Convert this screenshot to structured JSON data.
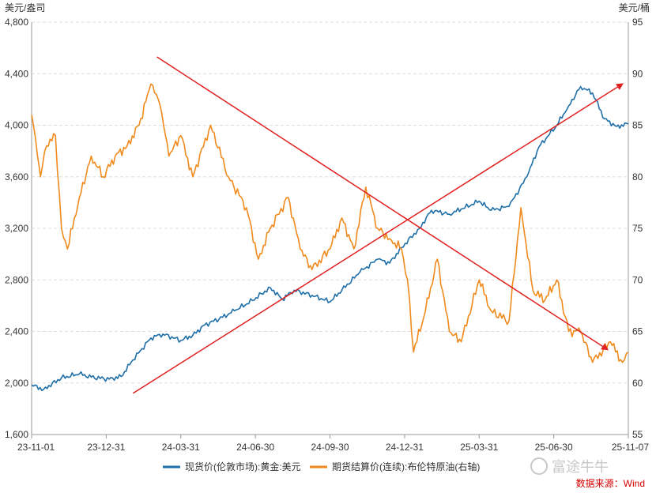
{
  "chart_data": {
    "type": "line",
    "left_axis_unit": "美元/盎司",
    "right_axis_unit": "美元/桶",
    "left_ylim": [
      1600,
      4800
    ],
    "left_ticks": [
      "1,600",
      "2,000",
      "2,400",
      "2,800",
      "3,200",
      "3,600",
      "4,000",
      "4,400",
      "4,800"
    ],
    "right_ylim": [
      55,
      95
    ],
    "right_ticks": [
      "55",
      "60",
      "65",
      "70",
      "75",
      "80",
      "85",
      "90",
      "95"
    ],
    "x_ticks": [
      "23-11-01",
      "23-12-31",
      "24-03-31",
      "24-06-30",
      "24-09-30",
      "24-12-31",
      "25-03-31",
      "25-06-30",
      "25-11-07"
    ],
    "grid": "horizontal dashed",
    "legend_position": "bottom",
    "source_text": "数据来源：Wind",
    "watermark": "富途牛牛",
    "series": [
      {
        "name": "现货价(伦敦市场):黄金:美元",
        "axis": "left",
        "color": "#1f6fa8",
        "x": [
          0,
          0.02,
          0.05,
          0.08,
          0.1,
          0.13,
          0.15,
          0.17,
          0.2,
          0.22,
          0.25,
          0.27,
          0.29,
          0.32,
          0.34,
          0.37,
          0.4,
          0.42,
          0.44,
          0.47,
          0.5,
          0.52,
          0.55,
          0.58,
          0.6,
          0.62,
          0.65,
          0.67,
          0.7,
          0.72,
          0.75,
          0.77,
          0.8,
          0.83,
          0.85,
          0.88,
          0.9,
          0.92,
          0.94,
          0.96,
          0.98,
          1.0
        ],
        "values": [
          1985,
          1950,
          2040,
          2070,
          2045,
          2030,
          2050,
          2180,
          2350,
          2380,
          2330,
          2370,
          2450,
          2510,
          2560,
          2640,
          2740,
          2650,
          2720,
          2680,
          2630,
          2720,
          2860,
          2960,
          2930,
          3050,
          3200,
          3340,
          3310,
          3350,
          3410,
          3340,
          3370,
          3600,
          3830,
          4000,
          4150,
          4300,
          4250,
          4050,
          3990,
          4010
        ]
      },
      {
        "name": "期货结算价(连续):布伦特原油(右轴)",
        "axis": "right",
        "color": "#f08a1c",
        "x": [
          0,
          0.01,
          0.015,
          0.025,
          0.04,
          0.05,
          0.06,
          0.08,
          0.1,
          0.12,
          0.14,
          0.16,
          0.18,
          0.2,
          0.215,
          0.23,
          0.25,
          0.27,
          0.3,
          0.33,
          0.36,
          0.38,
          0.4,
          0.43,
          0.45,
          0.47,
          0.5,
          0.52,
          0.54,
          0.56,
          0.58,
          0.6,
          0.62,
          0.63,
          0.64,
          0.66,
          0.68,
          0.7,
          0.72,
          0.75,
          0.77,
          0.8,
          0.82,
          0.84,
          0.86,
          0.88,
          0.9,
          0.92,
          0.94,
          0.97,
          0.99,
          1.0
        ],
        "values": [
          86,
          82,
          80,
          83,
          84,
          75,
          73,
          78,
          82,
          80,
          82,
          83,
          85,
          89,
          87,
          82,
          84,
          80,
          85,
          80,
          77,
          72,
          75,
          78,
          73,
          71,
          73,
          76,
          73,
          79,
          75,
          74,
          73,
          70,
          63,
          67,
          72,
          65,
          64,
          70,
          67,
          66,
          77,
          69,
          68,
          70,
          65,
          65,
          62,
          64,
          62,
          63
        ]
      }
    ],
    "annotations": [
      {
        "type": "line",
        "from": {
          "x": 0.21,
          "left_value": 4530
        },
        "to": {
          "x": 0.965,
          "left_value": 2260
        },
        "color": "#e02020",
        "arrow": "end"
      },
      {
        "type": "line",
        "from": {
          "x": 0.17,
          "left_value": 1920
        },
        "to": {
          "x": 0.99,
          "left_value": 4320
        },
        "color": "#e02020",
        "arrow": "end"
      }
    ]
  }
}
